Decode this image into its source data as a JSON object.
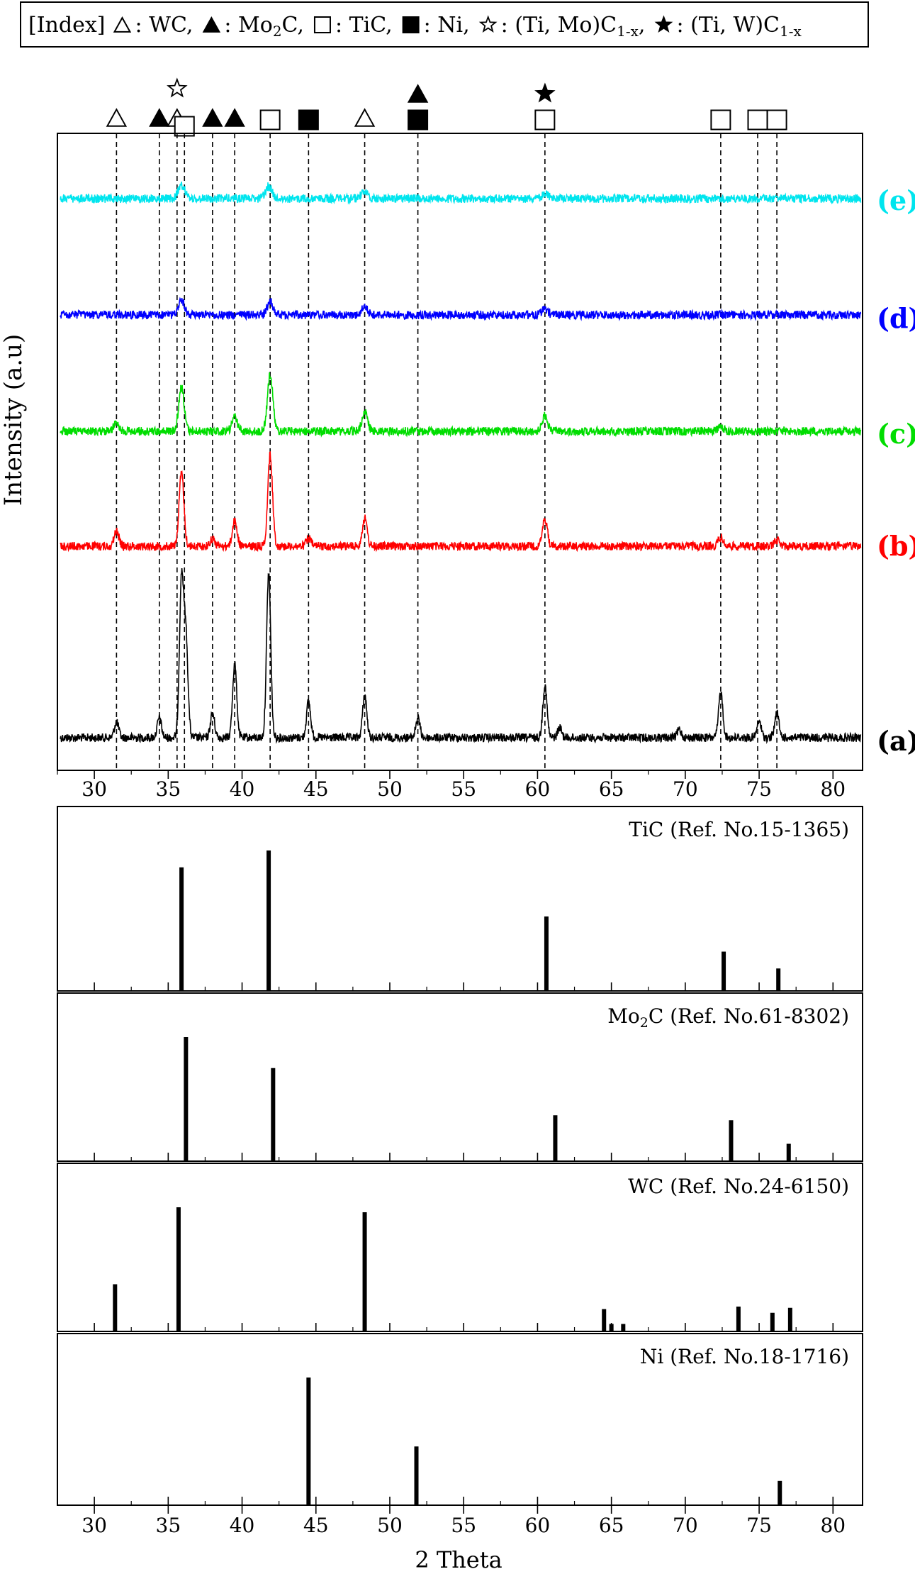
{
  "legend": {
    "prefix": "[Index]",
    "entries": [
      {
        "symbol": "tri-open",
        "label": "WC,"
      },
      {
        "symbol": "tri-filled",
        "label": "Mo",
        "sub": "2",
        "label2": "C,"
      },
      {
        "symbol": "sq-open",
        "label": "TiC,"
      },
      {
        "symbol": "sq-filled",
        "label": "Ni,"
      },
      {
        "symbol": "star-open",
        "label": "(Ti, Mo)C",
        "sub": "1-x",
        "label2": ","
      },
      {
        "symbol": "star-filled",
        "label": "(Ti, W)C",
        "sub": "1-x",
        "label2": ""
      }
    ]
  },
  "chart_data": [
    {
      "type": "line",
      "title": "",
      "ylabel": "Intensity (a.u)",
      "xlabel": "",
      "xlim": [
        27.5,
        82
      ],
      "xticks": [
        30,
        35,
        40,
        45,
        50,
        55,
        60,
        65,
        70,
        75,
        80
      ],
      "grid": false,
      "reference_lines": [
        31.5,
        34.4,
        35.6,
        36.1,
        38.0,
        39.5,
        41.9,
        44.5,
        48.3,
        51.9,
        60.5,
        72.4,
        74.9,
        76.2
      ],
      "markers": [
        {
          "x": 31.5,
          "symbols": [
            "tri-open"
          ]
        },
        {
          "x": 34.4,
          "symbols": [
            "tri-filled"
          ]
        },
        {
          "x": 35.6,
          "symbols": [
            "tri-open",
            "star-open"
          ]
        },
        {
          "x": 36.1,
          "symbols": [
            "sq-open"
          ]
        },
        {
          "x": 38.0,
          "symbols": [
            "tri-filled"
          ]
        },
        {
          "x": 39.5,
          "symbols": [
            "tri-filled"
          ]
        },
        {
          "x": 41.9,
          "symbols": [
            "sq-open"
          ]
        },
        {
          "x": 44.5,
          "symbols": [
            "sq-filled"
          ]
        },
        {
          "x": 48.3,
          "symbols": [
            "tri-open"
          ]
        },
        {
          "x": 51.9,
          "symbols": [
            "sq-filled",
            "tri-filled"
          ]
        },
        {
          "x": 60.5,
          "symbols": [
            "sq-open",
            "star-filled"
          ]
        },
        {
          "x": 72.4,
          "symbols": [
            "sq-open"
          ]
        },
        {
          "x": 74.9,
          "symbols": [
            "sq-open"
          ]
        },
        {
          "x": 76.2,
          "symbols": [
            "sq-open"
          ]
        }
      ],
      "series": [
        {
          "name": "(a)",
          "color": "#000000",
          "peaks": [
            [
              31.5,
              0.1
            ],
            [
              34.4,
              0.12
            ],
            [
              35.9,
              0.95
            ],
            [
              36.2,
              0.6
            ],
            [
              38.0,
              0.15
            ],
            [
              39.5,
              0.45
            ],
            [
              41.8,
              1.0
            ],
            [
              44.5,
              0.22
            ],
            [
              48.3,
              0.26
            ],
            [
              51.9,
              0.12
            ],
            [
              60.5,
              0.32
            ],
            [
              61.5,
              0.06
            ],
            [
              69.6,
              0.05
            ],
            [
              72.4,
              0.28
            ],
            [
              75.0,
              0.1
            ],
            [
              76.2,
              0.15
            ]
          ]
        },
        {
          "name": "(b)",
          "color": "#ff0000",
          "peaks": [
            [
              31.5,
              0.12
            ],
            [
              35.9,
              0.58
            ],
            [
              38.0,
              0.06
            ],
            [
              39.5,
              0.2
            ],
            [
              41.9,
              0.72
            ],
            [
              44.5,
              0.06
            ],
            [
              48.3,
              0.22
            ],
            [
              60.5,
              0.22
            ],
            [
              72.4,
              0.07
            ],
            [
              76.2,
              0.05
            ]
          ]
        },
        {
          "name": "(c)",
          "color": "#00dd00",
          "peaks": [
            [
              31.5,
              0.08
            ],
            [
              35.9,
              0.4
            ],
            [
              39.5,
              0.13
            ],
            [
              41.9,
              0.52
            ],
            [
              48.3,
              0.18
            ],
            [
              60.5,
              0.14
            ],
            [
              72.4,
              0.05
            ]
          ]
        },
        {
          "name": "(d)",
          "color": "#0000ff",
          "peaks": [
            [
              35.9,
              0.14
            ],
            [
              41.9,
              0.14
            ],
            [
              48.3,
              0.08
            ],
            [
              60.5,
              0.06
            ]
          ]
        },
        {
          "name": "(e)",
          "color": "#00e5ee",
          "peaks": [
            [
              35.9,
              0.15
            ],
            [
              41.8,
              0.14
            ],
            [
              48.3,
              0.09
            ],
            [
              60.5,
              0.05
            ]
          ]
        }
      ]
    },
    {
      "type": "bar",
      "title": "TiC (Ref. No.15-1365)",
      "xlim": [
        27.5,
        82
      ],
      "ylim": [
        0,
        100
      ],
      "x": [
        35.9,
        41.8,
        60.6,
        72.6,
        76.3
      ],
      "values": [
        88,
        100,
        53,
        28,
        16
      ]
    },
    {
      "type": "bar",
      "title": "Mo2C (Ref. No.61-8302)",
      "title_parts": {
        "pre": "Mo",
        "sub": "2",
        "post": "C (Ref. No.61-8302)"
      },
      "xlim": [
        27.5,
        82
      ],
      "ylim": [
        0,
        100
      ],
      "x": [
        36.2,
        42.1,
        61.2,
        73.1,
        77.0
      ],
      "values": [
        100,
        75,
        37,
        33,
        14
      ]
    },
    {
      "type": "bar",
      "title": "WC (Ref. No.24-6150)",
      "xlim": [
        27.5,
        82
      ],
      "ylim": [
        0,
        100
      ],
      "x": [
        31.4,
        35.7,
        48.3,
        64.5,
        65.0,
        65.8,
        73.6,
        75.9,
        77.1
      ],
      "values": [
        38,
        100,
        96,
        18,
        6,
        6,
        20,
        15,
        19
      ]
    },
    {
      "type": "bar",
      "title": "Ni (Ref. No.18-1716)",
      "xlim": [
        27.5,
        82
      ],
      "ylim": [
        0,
        100
      ],
      "x": [
        44.5,
        51.8,
        76.4
      ],
      "values": [
        100,
        46,
        19
      ]
    }
  ],
  "xaxis_label": "2 Theta",
  "xticks_bottom": [
    30,
    35,
    40,
    45,
    50,
    55,
    60,
    65,
    70,
    75,
    80
  ]
}
